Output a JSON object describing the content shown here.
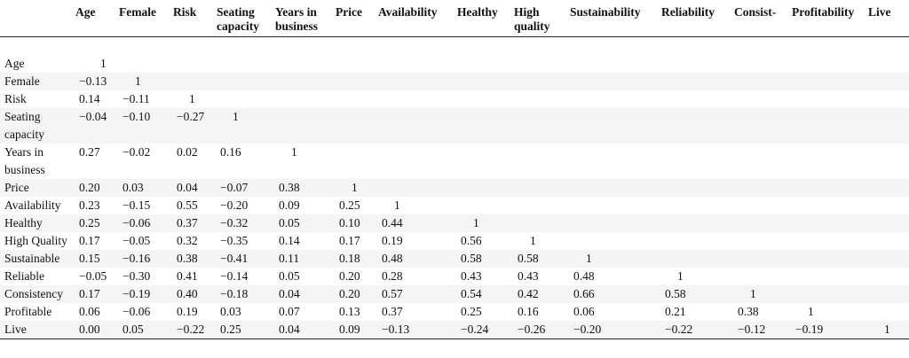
{
  "columns": [
    "Age",
    "Female",
    "Risk",
    "Seating capacity",
    "Years in business",
    "Price",
    "Availability",
    "Healthy",
    "High quality",
    "Sustainability",
    "Reliability",
    "Consist-",
    "Profitability",
    "Live"
  ],
  "rows": [
    {
      "label": "Age",
      "values": [
        "1"
      ]
    },
    {
      "label": "Female",
      "values": [
        "−0.13",
        "1"
      ]
    },
    {
      "label": "Risk",
      "values": [
        "0.14",
        "−0.11",
        "1"
      ]
    },
    {
      "label": "Seating capacity",
      "values": [
        "−0.04",
        "−0.10",
        "−0.27",
        "1"
      ]
    },
    {
      "label": "Years in business",
      "values": [
        "0.27",
        "−0.02",
        "0.02",
        "0.16",
        "1"
      ]
    },
    {
      "label": "Price",
      "values": [
        "0.20",
        "0.03",
        "0.04",
        "−0.07",
        "0.38",
        "1"
      ]
    },
    {
      "label": "Availability",
      "values": [
        "0.23",
        "−0.15",
        "0.55",
        "−0.20",
        "0.09",
        "0.25",
        "1"
      ]
    },
    {
      "label": "Healthy",
      "values": [
        "0.25",
        "−0.06",
        "0.37",
        "−0.32",
        "0.05",
        "0.10",
        "0.44",
        "1"
      ]
    },
    {
      "label": "High Quality",
      "values": [
        "0.17",
        "−0.05",
        "0.32",
        "−0.35",
        "0.14",
        "0.17",
        "0.19",
        "0.56",
        "1"
      ]
    },
    {
      "label": "Sustainable",
      "values": [
        "0.15",
        "−0.16",
        "0.38",
        "−0.41",
        "0.11",
        "0.18",
        "0.48",
        "0.58",
        "0.58",
        "1"
      ]
    },
    {
      "label": "Reliable",
      "values": [
        "−0.05",
        "−0.30",
        "0.41",
        "−0.14",
        "0.05",
        "0.20",
        "0.28",
        "0.43",
        "0.43",
        "0.48",
        "1"
      ]
    },
    {
      "label": "Consistency",
      "values": [
        "0.17",
        "−0.19",
        "0.40",
        "−0.18",
        "0.04",
        "0.20",
        "0.57",
        "0.54",
        "0.42",
        "0.66",
        "0.58",
        "1"
      ]
    },
    {
      "label": "Profitable",
      "values": [
        "0.06",
        "−0.06",
        "0.19",
        "0.03",
        "0.07",
        "0.13",
        "0.37",
        "0.25",
        "0.16",
        "0.06",
        "0.21",
        "0.38",
        "1"
      ]
    },
    {
      "label": "Live",
      "values": [
        "0.00",
        "0.05",
        "−0.22",
        "0.25",
        "0.04",
        "0.09",
        "−0.13",
        "−0.24",
        "−0.26",
        "−0.20",
        "−0.22",
        "−0.12",
        "−0.19",
        "1"
      ]
    }
  ]
}
